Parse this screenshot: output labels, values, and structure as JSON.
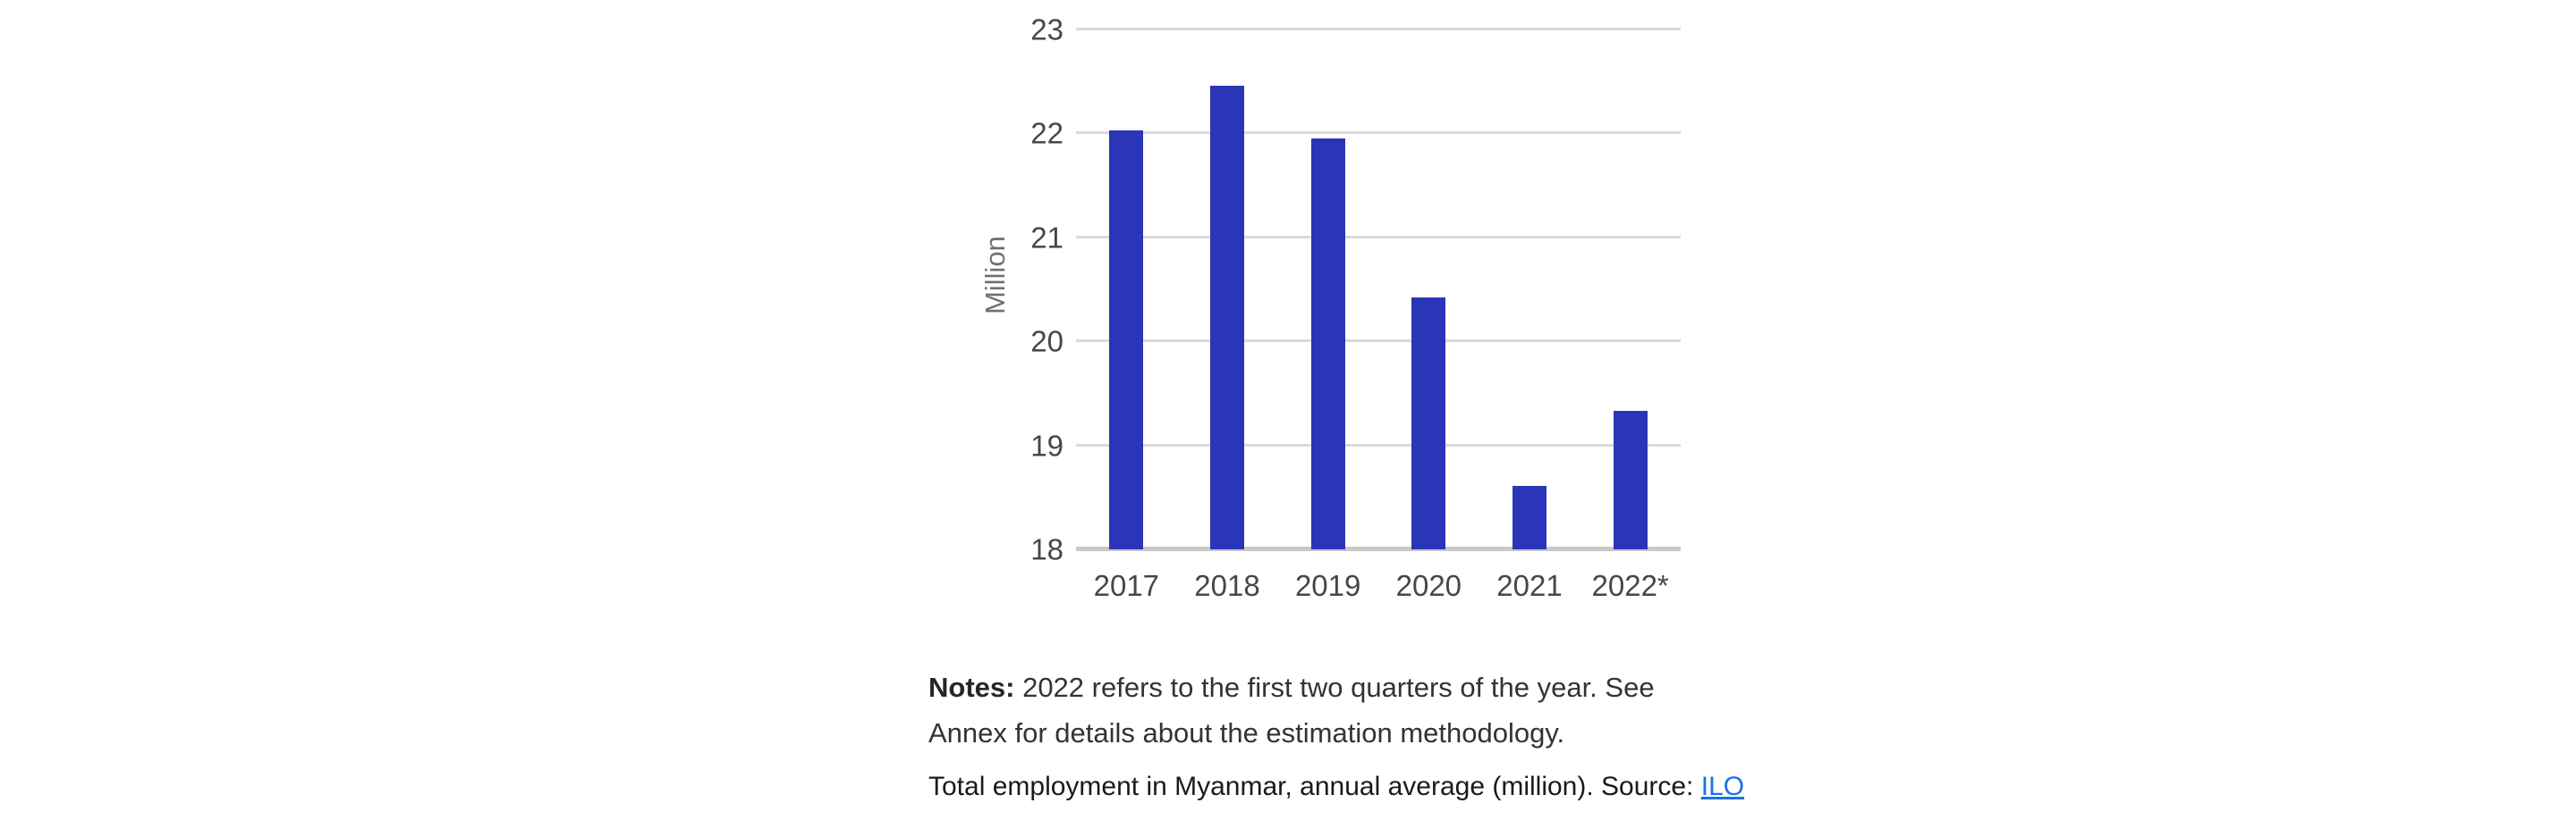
{
  "chart_data": {
    "type": "bar",
    "categories": [
      "2017",
      "2018",
      "2019",
      "2020",
      "2021",
      "2022*"
    ],
    "values": [
      22.03,
      22.46,
      21.95,
      20.42,
      18.61,
      19.33
    ],
    "title": "",
    "xlabel": "",
    "ylabel": "Million",
    "ylim": [
      18,
      23
    ],
    "yticks": [
      18,
      19,
      20,
      21,
      22,
      23
    ],
    "grid": true,
    "legend": "none",
    "bar_color": "#2a35b8",
    "gridline_color": "#d9d9d9",
    "baseline_color": "#c8c8c8",
    "tick_label_color": "#474747",
    "axis_label_color": "#6f6f6f"
  },
  "notes": {
    "label": "Notes:",
    "line1": "2022 refers to the first two quarters of the year. See",
    "line2": "Annex for details about the estimation methodology."
  },
  "caption": {
    "text": "Total employment in Myanmar, annual average (million). Source: ",
    "link_label": "ILO",
    "link_color": "#1a70e6"
  }
}
